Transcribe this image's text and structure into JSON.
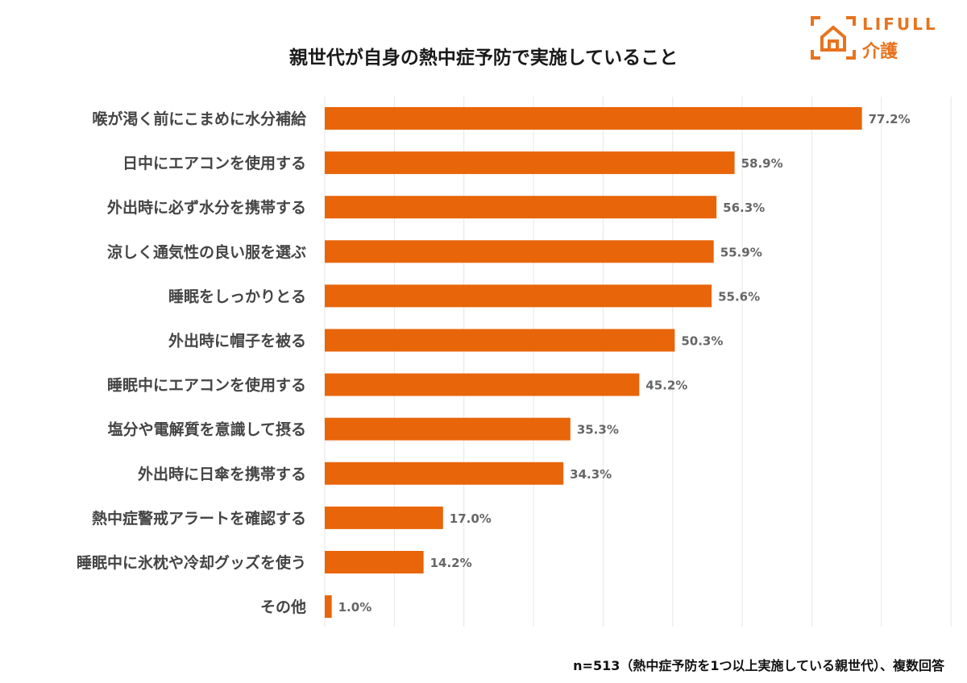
{
  "logo": {
    "brand": "LIFULL",
    "sub": "介護",
    "color": "#E8731E"
  },
  "note": "n=513（熱中症予防を1つ以上実施している親世代）、複数回答",
  "chart_data": {
    "type": "bar",
    "orientation": "horizontal",
    "title": "親世代が自身の熱中症予防で実施していること",
    "categories": [
      "喉が渇く前にこまめに水分補給",
      "日中にエアコンを使用する",
      "外出時に必ず水分を携帯する",
      "涼しく通気性の良い服を選ぶ",
      "睡眠をしっかりとる",
      "外出時に帽子を被る",
      "睡眠中にエアコンを使用する",
      "塩分や電解質を意識して摂る",
      "外出時に日傘を携帯する",
      "熱中症警戒アラートを確認する",
      "睡眠中に氷枕や冷却グッズを使う",
      "その他"
    ],
    "values": [
      77.2,
      58.9,
      56.3,
      55.9,
      55.6,
      50.3,
      45.2,
      35.3,
      34.3,
      17.0,
      14.2,
      1.0
    ],
    "data_labels": [
      "77.2%",
      "58.9%",
      "56.3%",
      "55.9%",
      "55.6%",
      "50.3%",
      "45.2%",
      "35.3%",
      "34.3%",
      "17.0%",
      "14.2%",
      "1.0%"
    ],
    "xlim": [
      0,
      90
    ],
    "grid": "vertical, every 10%",
    "bar_color": "#E8650A",
    "xlabel": "",
    "ylabel": ""
  }
}
